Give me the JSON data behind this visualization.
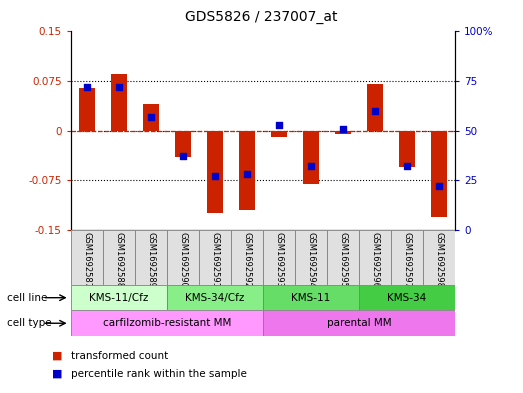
{
  "title": "GDS5826 / 237007_at",
  "samples": [
    "GSM1692587",
    "GSM1692588",
    "GSM1692589",
    "GSM1692590",
    "GSM1692591",
    "GSM1692592",
    "GSM1692593",
    "GSM1692594",
    "GSM1692595",
    "GSM1692596",
    "GSM1692597",
    "GSM1692598"
  ],
  "transformed_counts": [
    0.065,
    0.085,
    0.04,
    -0.04,
    -0.125,
    -0.12,
    -0.01,
    -0.08,
    -0.005,
    0.07,
    -0.055,
    -0.13
  ],
  "percentile_ranks": [
    72,
    72,
    57,
    37,
    27,
    28,
    53,
    32,
    51,
    60,
    32,
    22
  ],
  "ylim_left": [
    -0.15,
    0.15
  ],
  "ylim_right": [
    0,
    100
  ],
  "yticks_left": [
    -0.15,
    -0.075,
    0,
    0.075,
    0.15
  ],
  "yticks_right": [
    0,
    25,
    50,
    75,
    100
  ],
  "bar_color": "#cc2200",
  "dot_color": "#0000cc",
  "cell_line_groups": [
    {
      "label": "KMS-11/Cfz",
      "start": 0,
      "end": 3,
      "color": "#ccffcc"
    },
    {
      "label": "KMS-34/Cfz",
      "start": 3,
      "end": 6,
      "color": "#88ee88"
    },
    {
      "label": "KMS-11",
      "start": 6,
      "end": 9,
      "color": "#66dd66"
    },
    {
      "label": "KMS-34",
      "start": 9,
      "end": 12,
      "color": "#44cc44"
    }
  ],
  "cell_type_groups": [
    {
      "label": "carfilzomib-resistant MM",
      "start": 0,
      "end": 6,
      "color": "#ff99ff"
    },
    {
      "label": "parental MM",
      "start": 6,
      "end": 12,
      "color": "#ee77ee"
    }
  ],
  "bar_width": 0.5,
  "dot_size": 25
}
